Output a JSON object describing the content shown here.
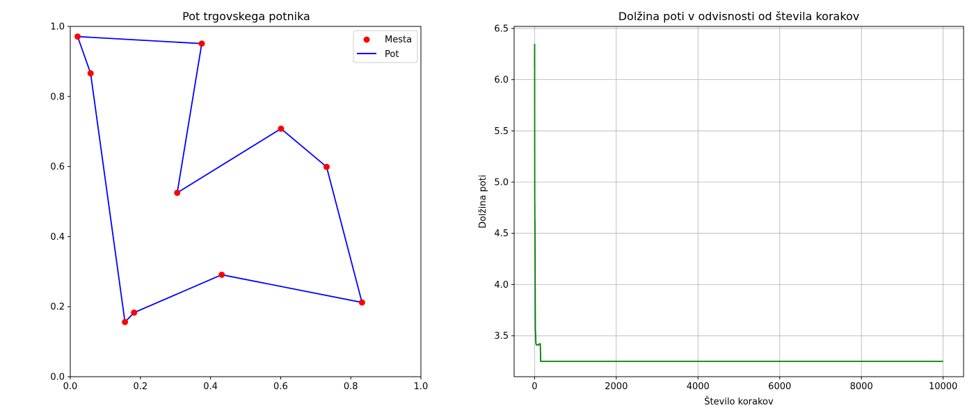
{
  "chart_data": [
    {
      "type": "scatter",
      "title": "Pot trgovskega potnika",
      "xlabel": "",
      "ylabel": "",
      "xlim": [
        0,
        1
      ],
      "ylim": [
        0,
        1
      ],
      "xticks": [
        "0.0",
        "0.2",
        "0.4",
        "0.6",
        "0.8",
        "1.0"
      ],
      "yticks": [
        "0.0",
        "0.2",
        "0.4",
        "0.6",
        "0.8",
        "1.0"
      ],
      "grid": false,
      "legend_position": "top-right",
      "legend": [
        {
          "name": "Mesta",
          "marker": "circle",
          "color": "#ff0000"
        },
        {
          "name": "Pot",
          "marker": "line",
          "color": "#0000ff"
        }
      ],
      "cities": [
        {
          "x": 0.021,
          "y": 0.971
        },
        {
          "x": 0.058,
          "y": 0.866
        },
        {
          "x": 0.156,
          "y": 0.156
        },
        {
          "x": 0.182,
          "y": 0.183
        },
        {
          "x": 0.432,
          "y": 0.291
        },
        {
          "x": 0.832,
          "y": 0.212
        },
        {
          "x": 0.731,
          "y": 0.599
        },
        {
          "x": 0.601,
          "y": 0.708
        },
        {
          "x": 0.305,
          "y": 0.525
        },
        {
          "x": 0.375,
          "y": 0.951
        }
      ],
      "path_order": [
        0,
        1,
        2,
        3,
        4,
        5,
        6,
        7,
        8,
        9,
        0
      ],
      "city_color": "#ff0000",
      "path_color": "#0000ff"
    },
    {
      "type": "line",
      "title": "Dolžina poti v odvisnosti od števila korakov",
      "xlabel": "Število korakov",
      "ylabel": "Dolžina poti",
      "xlim": [
        -500,
        10500
      ],
      "ylim": [
        3.1,
        6.52
      ],
      "xticks": [
        0,
        2000,
        4000,
        6000,
        8000,
        10000
      ],
      "yticks": [
        3.5,
        4.0,
        4.5,
        5.0,
        5.5,
        6.0,
        6.5
      ],
      "xtick_labels": [
        "0",
        "2000",
        "4000",
        "6000",
        "8000",
        "10000"
      ],
      "ytick_labels": [
        "3.5",
        "4.0",
        "4.5",
        "5.0",
        "5.5",
        "6.0",
        "6.5"
      ],
      "grid": true,
      "series": [
        {
          "color": "#008000",
          "x": [
            0,
            2,
            3,
            5,
            6,
            8,
            10,
            15,
            20,
            25,
            30,
            35,
            50,
            60,
            80,
            100,
            110,
            120,
            130,
            140,
            150,
            200,
            500,
            1000,
            5000,
            10000
          ],
          "y": [
            6.13,
            6.35,
            5.52,
            4.8,
            4.78,
            4.6,
            4.62,
            4.0,
            3.55,
            3.53,
            3.45,
            3.42,
            3.41,
            3.41,
            3.41,
            3.41,
            3.42,
            3.42,
            3.42,
            3.42,
            3.25,
            3.25,
            3.25,
            3.25,
            3.25,
            3.25
          ]
        }
      ]
    }
  ]
}
